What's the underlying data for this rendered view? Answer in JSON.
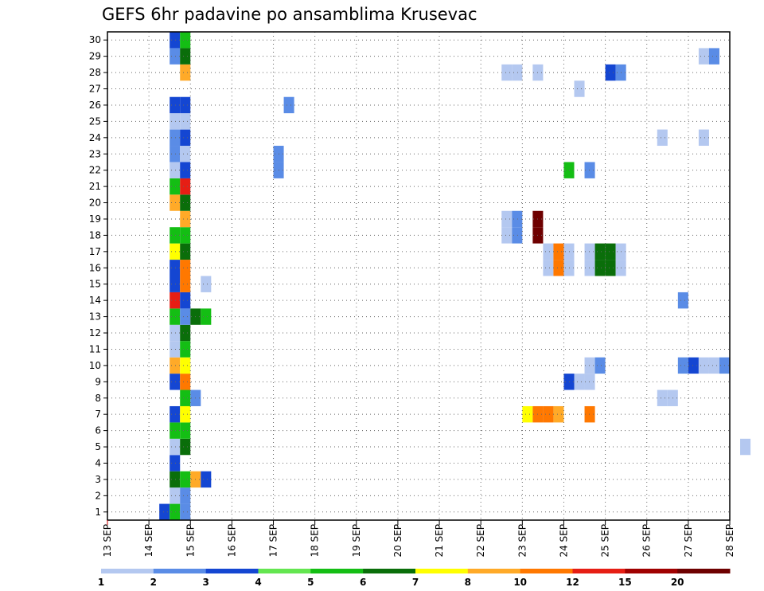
{
  "chart_data": {
    "type": "heatmap",
    "title": "GEFS 6hr padavine po ansamblima Krusevac",
    "xlabel": "",
    "ylabel": "",
    "x_ticks": [
      "13 SEP",
      "14 SEP",
      "15 SEP",
      "16 SEP",
      "17 SEP",
      "18 SEP",
      "19 SEP",
      "20 SEP",
      "21 SEP",
      "22 SEP",
      "23 SEP",
      "24 SEP",
      "25 SEP",
      "26 SEP",
      "27 SEP",
      "28 SEP"
    ],
    "y_ticks": [
      1,
      2,
      3,
      4,
      5,
      6,
      7,
      8,
      9,
      10,
      11,
      12,
      13,
      14,
      15,
      16,
      17,
      18,
      19,
      20,
      21,
      22,
      23,
      24,
      25,
      26,
      27,
      28,
      29,
      30
    ],
    "x_unit_note": "x = day of September (13 = 13 SEP 00Z), 6-hour steps",
    "xlim": [
      13,
      28
    ],
    "ylim": [
      0.5,
      30.5
    ],
    "grid": true,
    "legend_placement": "bottom",
    "legend": {
      "labels": [
        "1",
        "2",
        "3",
        "4",
        "5",
        "6",
        "7",
        "8",
        "10",
        "12",
        "15",
        "20"
      ],
      "colors": [
        "#b4c8f0",
        "#5a8ce6",
        "#1446d2",
        "#64e650",
        "#14be14",
        "#0a6e0a",
        "#ffff00",
        "#ffaa28",
        "#ff7800",
        "#e61e14",
        "#a00000",
        "#6e0000"
      ]
    },
    "cells": [
      {
        "member": 1,
        "start": 14.25,
        "value": 3
      },
      {
        "member": 1,
        "start": 14.5,
        "value": 5
      },
      {
        "member": 1,
        "start": 14.75,
        "value": 2
      },
      {
        "member": 2,
        "start": 14.5,
        "value": 1
      },
      {
        "member": 2,
        "start": 14.75,
        "value": 2
      },
      {
        "member": 3,
        "start": 14.5,
        "value": 6
      },
      {
        "member": 3,
        "start": 14.75,
        "value": 5
      },
      {
        "member": 3,
        "start": 15.0,
        "value": 8
      },
      {
        "member": 3,
        "start": 15.25,
        "value": 3
      },
      {
        "member": 4,
        "start": 14.5,
        "value": 3
      },
      {
        "member": 5,
        "start": 14.5,
        "value": 1
      },
      {
        "member": 5,
        "start": 14.75,
        "value": 6
      },
      {
        "member": 5,
        "start": 28.25,
        "value": 1
      },
      {
        "member": 6,
        "start": 14.5,
        "value": 5
      },
      {
        "member": 6,
        "start": 14.75,
        "value": 5
      },
      {
        "member": 7,
        "start": 14.5,
        "value": 3
      },
      {
        "member": 7,
        "start": 14.75,
        "value": 7
      },
      {
        "member": 7,
        "start": 23.0,
        "value": 7
      },
      {
        "member": 7,
        "start": 23.25,
        "value": 10
      },
      {
        "member": 7,
        "start": 23.5,
        "value": 10
      },
      {
        "member": 7,
        "start": 23.75,
        "value": 8
      },
      {
        "member": 7,
        "start": 24.5,
        "value": 10
      },
      {
        "member": 8,
        "start": 14.75,
        "value": 5
      },
      {
        "member": 8,
        "start": 15.0,
        "value": 2
      },
      {
        "member": 8,
        "start": 26.25,
        "value": 1
      },
      {
        "member": 8,
        "start": 26.5,
        "value": 1
      },
      {
        "member": 9,
        "start": 14.5,
        "value": 3
      },
      {
        "member": 9,
        "start": 14.75,
        "value": 10
      },
      {
        "member": 9,
        "start": 24.0,
        "value": 3
      },
      {
        "member": 9,
        "start": 24.25,
        "value": 1
      },
      {
        "member": 9,
        "start": 24.5,
        "value": 1
      },
      {
        "member": 10,
        "start": 14.5,
        "value": 8
      },
      {
        "member": 10,
        "start": 14.75,
        "value": 7
      },
      {
        "member": 10,
        "start": 24.5,
        "value": 1
      },
      {
        "member": 10,
        "start": 24.75,
        "value": 2
      },
      {
        "member": 10,
        "start": 26.75,
        "value": 2
      },
      {
        "member": 10,
        "start": 27.0,
        "value": 3
      },
      {
        "member": 10,
        "start": 27.25,
        "value": 1
      },
      {
        "member": 10,
        "start": 27.5,
        "value": 1
      },
      {
        "member": 10,
        "start": 27.75,
        "value": 2
      },
      {
        "member": 11,
        "start": 14.5,
        "value": 1
      },
      {
        "member": 11,
        "start": 14.75,
        "value": 5
      },
      {
        "member": 12,
        "start": 14.5,
        "value": 1
      },
      {
        "member": 12,
        "start": 14.75,
        "value": 6
      },
      {
        "member": 13,
        "start": 14.5,
        "value": 5
      },
      {
        "member": 13,
        "start": 14.75,
        "value": 2
      },
      {
        "member": 13,
        "start": 15.0,
        "value": 6
      },
      {
        "member": 13,
        "start": 15.25,
        "value": 5
      },
      {
        "member": 14,
        "start": 14.5,
        "value": 12
      },
      {
        "member": 14,
        "start": 14.75,
        "value": 3
      },
      {
        "member": 14,
        "start": 26.75,
        "value": 2
      },
      {
        "member": 15,
        "start": 14.5,
        "value": 3
      },
      {
        "member": 15,
        "start": 14.75,
        "value": 10
      },
      {
        "member": 15,
        "start": 15.25,
        "value": 1
      },
      {
        "member": 16,
        "start": 14.5,
        "value": 3
      },
      {
        "member": 16,
        "start": 14.75,
        "value": 10
      },
      {
        "member": 16,
        "start": 23.5,
        "value": 1
      },
      {
        "member": 16,
        "start": 23.75,
        "value": 10
      },
      {
        "member": 16,
        "start": 24.0,
        "value": 1
      },
      {
        "member": 16,
        "start": 24.5,
        "value": 1
      },
      {
        "member": 16,
        "start": 24.75,
        "value": 6
      },
      {
        "member": 16,
        "start": 25.0,
        "value": 6
      },
      {
        "member": 16,
        "start": 25.25,
        "value": 1
      },
      {
        "member": 17,
        "start": 14.5,
        "value": 7
      },
      {
        "member": 17,
        "start": 14.75,
        "value": 6
      },
      {
        "member": 17,
        "start": 23.5,
        "value": 1
      },
      {
        "member": 17,
        "start": 23.75,
        "value": 10
      },
      {
        "member": 17,
        "start": 24.0,
        "value": 1
      },
      {
        "member": 17,
        "start": 24.5,
        "value": 1
      },
      {
        "member": 17,
        "start": 24.75,
        "value": 6
      },
      {
        "member": 17,
        "start": 25.0,
        "value": 6
      },
      {
        "member": 17,
        "start": 25.25,
        "value": 1
      },
      {
        "member": 18,
        "start": 14.5,
        "value": 5
      },
      {
        "member": 18,
        "start": 14.75,
        "value": 5
      },
      {
        "member": 18,
        "start": 22.5,
        "value": 1
      },
      {
        "member": 18,
        "start": 22.75,
        "value": 2
      },
      {
        "member": 18,
        "start": 23.25,
        "value": 20
      },
      {
        "member": 19,
        "start": 14.75,
        "value": 8
      },
      {
        "member": 19,
        "start": 22.5,
        "value": 1
      },
      {
        "member": 19,
        "start": 22.75,
        "value": 2
      },
      {
        "member": 19,
        "start": 23.25,
        "value": 20
      },
      {
        "member": 20,
        "start": 14.5,
        "value": 8
      },
      {
        "member": 20,
        "start": 14.75,
        "value": 6
      },
      {
        "member": 21,
        "start": 14.5,
        "value": 5
      },
      {
        "member": 21,
        "start": 14.75,
        "value": 12
      },
      {
        "member": 22,
        "start": 14.5,
        "value": 1
      },
      {
        "member": 22,
        "start": 14.75,
        "value": 3
      },
      {
        "member": 22,
        "start": 17.0,
        "value": 2
      },
      {
        "member": 22,
        "start": 24.0,
        "value": 5
      },
      {
        "member": 22,
        "start": 24.5,
        "value": 2
      },
      {
        "member": 23,
        "start": 14.5,
        "value": 2
      },
      {
        "member": 23,
        "start": 14.75,
        "value": 1
      },
      {
        "member": 23,
        "start": 17.0,
        "value": 2
      },
      {
        "member": 24,
        "start": 14.5,
        "value": 2
      },
      {
        "member": 24,
        "start": 14.75,
        "value": 3
      },
      {
        "member": 24,
        "start": 26.25,
        "value": 1
      },
      {
        "member": 24,
        "start": 27.25,
        "value": 1
      },
      {
        "member": 25,
        "start": 14.5,
        "value": 1
      },
      {
        "member": 25,
        "start": 14.75,
        "value": 1
      },
      {
        "member": 26,
        "start": 14.5,
        "value": 3
      },
      {
        "member": 26,
        "start": 14.75,
        "value": 3
      },
      {
        "member": 26,
        "start": 17.25,
        "value": 2
      },
      {
        "member": 27,
        "start": 24.25,
        "value": 1
      },
      {
        "member": 28,
        "start": 14.75,
        "value": 8
      },
      {
        "member": 28,
        "start": 22.5,
        "value": 1
      },
      {
        "member": 28,
        "start": 22.75,
        "value": 1
      },
      {
        "member": 28,
        "start": 23.25,
        "value": 1
      },
      {
        "member": 28,
        "start": 25.0,
        "value": 3
      },
      {
        "member": 28,
        "start": 25.25,
        "value": 2
      },
      {
        "member": 29,
        "start": 14.5,
        "value": 2
      },
      {
        "member": 29,
        "start": 14.75,
        "value": 6
      },
      {
        "member": 29,
        "start": 27.25,
        "value": 1
      },
      {
        "member": 29,
        "start": 27.5,
        "value": 2
      },
      {
        "member": 30,
        "start": 14.5,
        "value": 3
      },
      {
        "member": 30,
        "start": 14.75,
        "value": 5
      }
    ]
  }
}
